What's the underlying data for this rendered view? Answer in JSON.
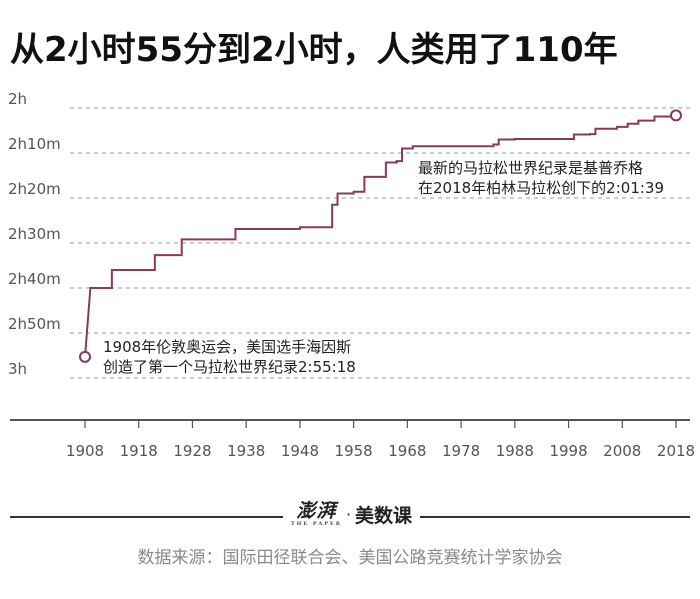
{
  "title": "从2小时55分到2小时，人类用了110年",
  "colors": {
    "line": "#8b3a55",
    "grid": "#999999",
    "axis": "#555555",
    "text": "#555555"
  },
  "chart_data": {
    "type": "line",
    "title": "从2小时55分到2小时，人类用了110年",
    "xlabel": "",
    "ylabel": "",
    "x_ticks": [
      1908,
      1918,
      1928,
      1938,
      1948,
      1958,
      1968,
      1978,
      1988,
      1998,
      2008,
      2018
    ],
    "y_ticks": [
      {
        "label": "2h",
        "minutes": 120
      },
      {
        "label": "2h10m",
        "minutes": 130
      },
      {
        "label": "2h20m",
        "minutes": 140
      },
      {
        "label": "2h30m",
        "minutes": 150
      },
      {
        "label": "2h40m",
        "minutes": 160
      },
      {
        "label": "2h50m",
        "minutes": 170
      },
      {
        "label": "3h",
        "minutes": 180
      }
    ],
    "xlim": [
      1905,
      2020
    ],
    "ylim_minutes": [
      120,
      180
    ],
    "y_inverted": true,
    "grid": "horizontal-dashed",
    "series": [
      {
        "step": "post",
        "points": [
          [
            1908,
            175.3
          ],
          [
            1909,
            160.0
          ],
          [
            1912,
            160.0
          ],
          [
            1913,
            156.0
          ],
          [
            1920,
            156.0
          ],
          [
            1921,
            152.7
          ],
          [
            1925,
            152.7
          ],
          [
            1926,
            149.2
          ],
          [
            1935,
            149.2
          ],
          [
            1936,
            146.9
          ],
          [
            1947,
            146.9
          ],
          [
            1948,
            146.5
          ],
          [
            1953,
            146.5
          ],
          [
            1954,
            141.5
          ],
          [
            1955,
            139.0
          ],
          [
            1958,
            138.6
          ],
          [
            1960,
            135.3
          ],
          [
            1963,
            135.3
          ],
          [
            1964,
            132.1
          ],
          [
            1966,
            131.8
          ],
          [
            1967,
            129.0
          ],
          [
            1969,
            128.5
          ],
          [
            1981,
            128.5
          ],
          [
            1984,
            128.1
          ],
          [
            1985,
            127.0
          ],
          [
            1988,
            126.9
          ],
          [
            1999,
            125.9
          ],
          [
            2002,
            125.8
          ],
          [
            2003,
            124.6
          ],
          [
            2007,
            124.2
          ],
          [
            2009,
            123.5
          ],
          [
            2011,
            122.8
          ],
          [
            2014,
            121.9
          ],
          [
            2018,
            121.65
          ]
        ]
      }
    ],
    "markers": [
      {
        "x": 1908,
        "y": 175.3
      },
      {
        "x": 2018,
        "y": 121.65
      }
    ],
    "annotations": [
      {
        "lines": [
          "1908年伦敦奥运会，美国选手海因斯",
          "创造了第一个马拉松世界纪录2:55:18"
        ]
      },
      {
        "lines": [
          "最新的马拉松世界纪录是基普乔格",
          "在2018年柏林马拉松创下的2:01:39"
        ]
      }
    ]
  },
  "logo": {
    "brand": "澎湃",
    "brand_sub": "THE PAPER",
    "dot": "·",
    "section": "美数课"
  },
  "source": "数据来源：国际田径联合会、美国公路竞赛统计学家协会"
}
